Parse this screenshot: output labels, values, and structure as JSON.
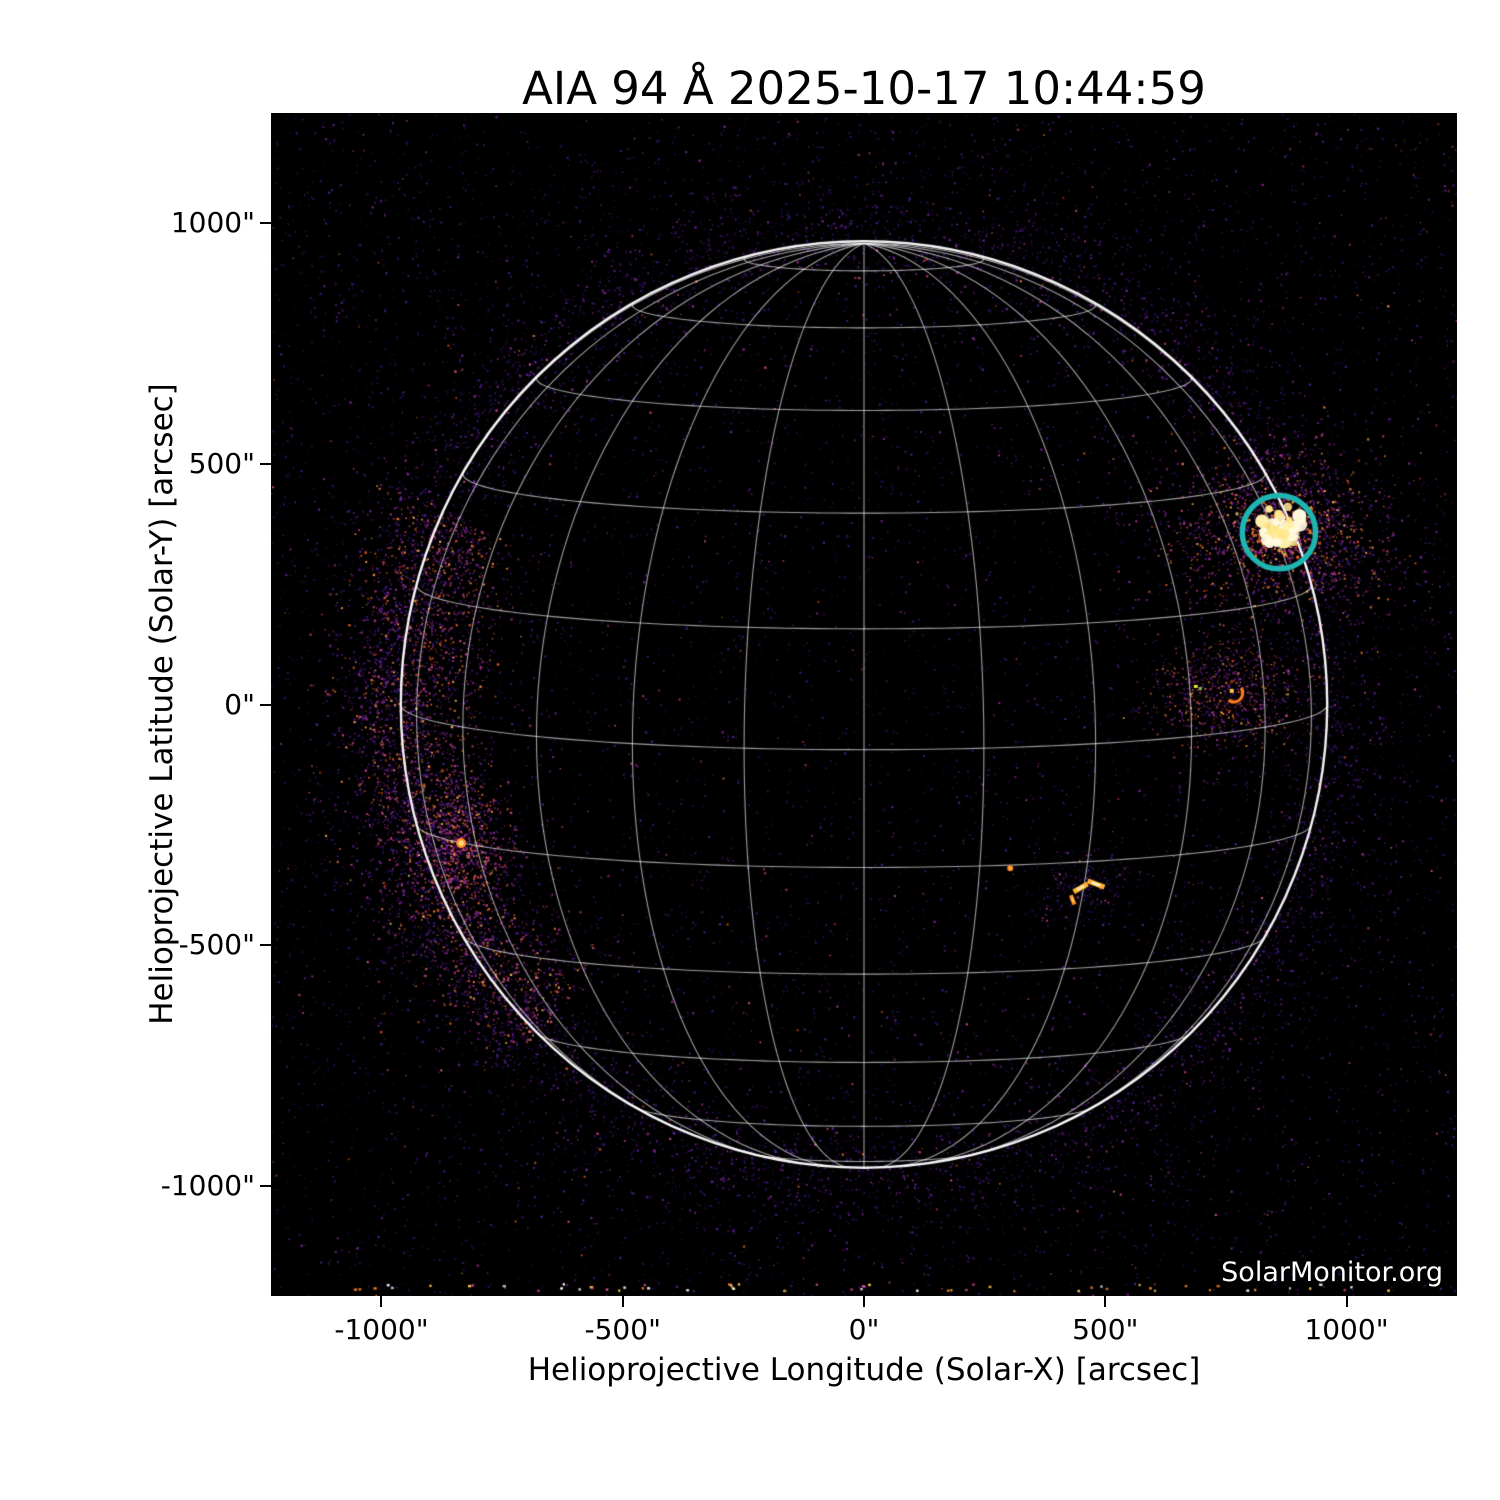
{
  "title": "AIA 94 Å 2025-10-17 10:44:59",
  "watermark": "SolarMonitor.org",
  "axes": {
    "x_label": "Helioprojective Longitude (Solar-X) [arcsec]",
    "y_label": "Helioprojective Latitude (Solar-Y) [arcsec]",
    "x_tick_labels": [
      "-1000\"",
      "-500\"",
      "0\"",
      "500\"",
      "1000\""
    ],
    "y_tick_labels": [
      "1000\"",
      "500\"",
      "0\"",
      "-500\"",
      "-1000\""
    ]
  },
  "chart_data": {
    "type": "heatmap",
    "title": "AIA 94 Å 2025-10-17 10:44:59",
    "instrument": "AIA",
    "wavelength_angstrom": 94,
    "datetime": "2025-10-17 10:44:59",
    "xlabel": "Helioprojective Longitude (Solar-X) [arcsec]",
    "ylabel": "Helioprojective Latitude (Solar-Y) [arcsec]",
    "xlim": [
      -1229,
      1229
    ],
    "ylim": [
      -1229,
      1229
    ],
    "x_tick_values": [
      -1000,
      -500,
      0,
      500,
      1000
    ],
    "y_tick_values": [
      1000,
      500,
      0,
      -500,
      -1000
    ],
    "solar_radius_arcsec": 960,
    "grid": {
      "style": "stonyhurst-heliographic",
      "spacing_deg": 15,
      "b0_deg": 5.6,
      "color": "#ffffff",
      "alpha": 0.62
    },
    "limb": {
      "color": "#ffffff",
      "alpha": 0.95,
      "width": 2.4
    },
    "annotation_circle": {
      "x_arcsec": 860,
      "y_arcsec": 358,
      "radius_arcsec": 76,
      "color": "#1fb6b2",
      "line_width": 5.5
    },
    "active_regions": [
      {
        "x_arcsec": 860,
        "y_arcsec": 358,
        "brightness": "saturated",
        "note": "circled flaring region, NW limb"
      },
      {
        "x_arcsec": 754,
        "y_arcsec": 24,
        "brightness": "moderate",
        "note": "orange loop arc west of disk center"
      },
      {
        "x_arcsec": 449,
        "y_arcsec": -381,
        "brightness": "bright",
        "note": "paired yellow streaks"
      },
      {
        "x_arcsec": 481,
        "y_arcsec": -373,
        "brightness": "bright"
      },
      {
        "x_arcsec": 303,
        "y_arcsec": -340,
        "brightness": "small"
      },
      {
        "x_arcsec": -835,
        "y_arcsec": -288,
        "brightness": "bright",
        "note": "east limb brightening"
      }
    ],
    "background_color": "#000000",
    "colormap": "sdoaia94 (black-purple-magenta-orange-yellow)"
  },
  "palette": {
    "noise": [
      [
        "#1d0b3c",
        6
      ],
      [
        "#2e1160",
        5
      ],
      [
        "#45187f",
        4
      ],
      [
        "#5b1f9b",
        2.5
      ],
      [
        "#7a27a8",
        1.5
      ],
      [
        "#312a7a",
        1.2
      ],
      [
        "#8c2a8c",
        0.8
      ],
      [
        "#c03a86",
        0.5
      ],
      [
        "#e0559b",
        0.25
      ],
      [
        "#e2571d",
        0.15
      ],
      [
        "#ff8c42",
        0.08
      ]
    ],
    "east_lobe": [
      [
        "#45187f",
        2
      ],
      [
        "#5b1f9b",
        2
      ],
      [
        "#8c2a8c",
        2
      ],
      [
        "#c03a86",
        2
      ],
      [
        "#e2571d",
        1.5
      ],
      [
        "#ff8c42",
        1
      ],
      [
        "#ffb25e",
        0.5
      ]
    ],
    "ar_fringe": [
      [
        "#ff6418",
        1.2
      ],
      [
        "#ff8a28",
        2
      ],
      [
        "#ffb040",
        1
      ],
      [
        "#d63a7e",
        1
      ],
      [
        "#8c2a8c",
        0.8
      ],
      [
        "#ffd966",
        0.5
      ]
    ],
    "ar_core": [
      "#fffbe2",
      "#fff3ae",
      "#ffe88c"
    ],
    "bottom_artifacts": [
      [
        "#ffffff",
        1
      ],
      [
        "#ffd24a",
        1
      ],
      [
        "#ff8a28",
        1
      ],
      [
        "#e0559b",
        0.7
      ],
      [
        "#c03a86",
        0.5
      ]
    ]
  }
}
